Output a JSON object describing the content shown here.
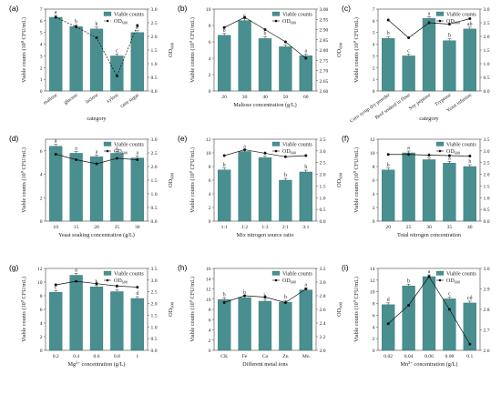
{
  "colors": {
    "bar": "#4a8f90",
    "bar_edge": "#2f6e6f",
    "line": "#111111",
    "axis": "#444444"
  },
  "legend": {
    "bar_label": "Viable counts",
    "line_label": "OD",
    "line_sub": "600"
  },
  "chart_data": [
    {
      "panel": "(a)",
      "type": "bar",
      "categories": [
        "maltose",
        "glucose",
        "lactose",
        "xylose",
        "cane sugar"
      ],
      "xlabel": "category",
      "ylabel_main": "Viable counts (10",
      "ylabel_sup": "8",
      "ylabel_tail": " CFU/mL)",
      "ylabel_right": "OD",
      "ylabel_right_sub": "600",
      "ylim": [
        0,
        7
      ],
      "yticks": [
        0,
        1,
        2,
        3,
        4,
        5,
        6,
        7
      ],
      "y2lim": [
        0,
        3.0
      ],
      "y2ticks": [
        0,
        0.5,
        1.0,
        1.5,
        2.0,
        2.5,
        3.0
      ],
      "values": [
        6.3,
        5.5,
        5.3,
        3.0,
        5.0
      ],
      "od": [
        2.7,
        2.35,
        1.95,
        0.55,
        2.4
      ],
      "line_dashed": true,
      "letters": [
        "a",
        "b",
        "b",
        "c",
        "b"
      ]
    },
    {
      "panel": "(b)",
      "type": "bar",
      "categories": [
        "20",
        "30",
        "40",
        "50",
        "60"
      ],
      "xlabel": "Maltose concentration (g/L)",
      "ylabel_main": "Viable counts (10",
      "ylabel_sup": "9",
      "ylabel_tail": " CFU/mL)",
      "ylabel_right": "OD",
      "ylabel_right_sub": "600",
      "ylim": [
        0,
        10
      ],
      "yticks": [
        0,
        2,
        4,
        6,
        8,
        10
      ],
      "y2lim": [
        2.6,
        3.0
      ],
      "y2ticks": [
        2.6,
        2.65,
        2.7,
        2.75,
        2.8,
        2.85,
        2.9,
        2.95,
        3.0
      ],
      "values": [
        6.8,
        8.6,
        6.4,
        5.4,
        4.3
      ],
      "od": [
        2.91,
        2.96,
        2.9,
        2.84,
        2.76
      ],
      "line_dashed": false,
      "letters": [
        "b",
        "c",
        "b",
        "a",
        "a"
      ]
    },
    {
      "panel": "(c)",
      "type": "bar",
      "categories": [
        "Corn syrup dry powder",
        "Beef soaked in flour",
        "Soy peptone",
        "Tryptone",
        "Yeast infusion"
      ],
      "xlabel": "category",
      "ylabel_main": "Viable counts (10",
      "ylabel_sup": "9",
      "ylabel_tail": " CFU/mL)",
      "ylabel_right": "OD",
      "ylabel_right_sub": "600",
      "ylim": [
        0,
        7
      ],
      "yticks": [
        0,
        1,
        2,
        3,
        4,
        5,
        6,
        7
      ],
      "y2lim": [
        0,
        3.0
      ],
      "y2ticks": [
        0,
        0.5,
        1.0,
        1.5,
        2.0,
        2.5,
        3.0
      ],
      "values": [
        4.5,
        3.0,
        6.2,
        4.3,
        5.3
      ],
      "od": [
        2.6,
        1.95,
        2.5,
        2.45,
        2.65
      ],
      "line_dashed": false,
      "letters": [
        "b",
        "c",
        "a",
        "b",
        "ab"
      ]
    },
    {
      "panel": "(d)",
      "type": "bar",
      "categories": [
        "10",
        "15",
        "20",
        "25",
        "30"
      ],
      "xlabel": "Yeast soaking concentration (g/L)",
      "ylabel_main": "Viable counts (10",
      "ylabel_sup": "9",
      "ylabel_tail": " CFU/mL)",
      "ylabel_right": "OD",
      "ylabel_right_sub": "600",
      "ylim": [
        0,
        7
      ],
      "yticks": [
        0,
        2,
        4,
        6
      ],
      "y2lim": [
        0,
        3.0
      ],
      "y2ticks": [
        0,
        0.5,
        1.0,
        1.5,
        2.0,
        2.5,
        3.0
      ],
      "values": [
        6.4,
        5.8,
        5.5,
        5.8,
        5.4
      ],
      "od": [
        2.45,
        2.25,
        2.1,
        2.3,
        2.25
      ],
      "line_dashed": false,
      "letters": [
        "a",
        "a",
        "a",
        "a",
        "a"
      ]
    },
    {
      "panel": "(e)",
      "type": "bar",
      "categories": [
        "1:1",
        "1:2",
        "1:3",
        "2:1",
        "3:1"
      ],
      "xlabel": "Mix nitrogen source ratio",
      "ylabel_main": "Viable counts (10",
      "ylabel_sup": "9",
      "ylabel_tail": " CFU/mL)",
      "ylabel_right": "OD",
      "ylabel_right_sub": "600",
      "ylim": [
        0,
        12
      ],
      "yticks": [
        0,
        2,
        4,
        6,
        8,
        10,
        12
      ],
      "y2lim": [
        0,
        3.5
      ],
      "y2ticks": [
        0,
        0.5,
        1.0,
        1.5,
        2.0,
        2.5,
        3.0,
        3.5
      ],
      "values": [
        7.5,
        10.2,
        9.3,
        6.0,
        7.2
      ],
      "od": [
        2.8,
        3.05,
        2.9,
        2.75,
        2.8
      ],
      "line_dashed": false,
      "letters": [
        "b",
        "a",
        "a",
        "b",
        "b"
      ]
    },
    {
      "panel": "(f)",
      "type": "bar",
      "categories": [
        "20",
        "25",
        "30",
        "35",
        "40"
      ],
      "xlabel": "Total nitrogen concentration",
      "ylabel_main": "Viable counts (10",
      "ylabel_sup": "9",
      "ylabel_tail": " CFU/mL)",
      "ylabel_right": "OD",
      "ylabel_right_sub": "600",
      "ylim": [
        0,
        12
      ],
      "yticks": [
        0,
        2,
        4,
        6,
        8,
        10,
        12
      ],
      "y2lim": [
        0,
        3.5
      ],
      "y2ticks": [
        0,
        0.5,
        1.0,
        1.5,
        2.0,
        2.5,
        3.0,
        3.5
      ],
      "values": [
        7.5,
        10.0,
        9.0,
        8.5,
        8.0
      ],
      "od": [
        2.85,
        2.85,
        2.82,
        2.8,
        2.78
      ],
      "line_dashed": false,
      "letters": [
        "b",
        "a",
        "a",
        "a",
        "b"
      ]
    },
    {
      "panel": "(g)",
      "type": "bar",
      "categories": [
        "0.2",
        "0.4",
        "0.6",
        "0.8",
        "1"
      ],
      "xlabel": "Mg",
      "xlabel_sup": "2+",
      "xlabel_tail": " concentration (g/L)",
      "ylabel_main": "Viable counts (10",
      "ylabel_sup": "9",
      "ylabel_tail": " CFU/mL)",
      "ylabel_right": "OD",
      "ylabel_right_sub": "600",
      "ylim": [
        0,
        12
      ],
      "yticks": [
        0,
        2,
        4,
        6,
        8,
        10,
        12
      ],
      "y2lim": [
        0,
        3.5
      ],
      "y2ticks": [
        0,
        0.5,
        1.0,
        1.5,
        2.0,
        2.5,
        3.0,
        3.5
      ],
      "values": [
        8.5,
        11.0,
        9.3,
        8.6,
        7.6
      ],
      "od": [
        2.8,
        2.95,
        2.85,
        2.75,
        2.7
      ],
      "line_dashed": false,
      "letters": [
        "c",
        "a",
        "b",
        "c",
        "d"
      ]
    },
    {
      "panel": "(h)",
      "type": "bar",
      "categories": [
        "CK",
        "Fe",
        "Cu",
        "Zn",
        "Mn"
      ],
      "xlabel": "Different metal ions",
      "ylabel_main": "Viable counts (10",
      "ylabel_sup": "9",
      "ylabel_tail": " CFU/mL)",
      "ylabel_right": "OD",
      "ylabel_right_sub": "600",
      "ylim": [
        0,
        16
      ],
      "yticks": [
        0,
        2,
        4,
        6,
        8,
        10,
        12,
        14,
        16
      ],
      "y2lim": [
        2.0,
        3.2
      ],
      "y2ticks": [
        2.0,
        2.2,
        2.4,
        2.6,
        2.8,
        3.0,
        3.2
      ],
      "values": [
        9.9,
        10.3,
        9.6,
        9.4,
        11.8
      ],
      "od": [
        2.7,
        2.8,
        2.78,
        2.7,
        2.9
      ],
      "line_dashed": false,
      "letters": [
        "b",
        "b",
        "b",
        "b",
        "a"
      ]
    },
    {
      "panel": "(i)",
      "type": "bar",
      "categories": [
        "0.02",
        "0.04",
        "0.06",
        "0.08",
        "0.1"
      ],
      "xlabel": "Mn",
      "xlabel_sup": "2+",
      "xlabel_tail": " concentration (g/L)",
      "ylabel_main": "Viable counts (10",
      "ylabel_sup": "9",
      "ylabel_tail": " CFU/mL)",
      "ylabel_right": "OD",
      "ylabel_right_sub": "600",
      "ylim": [
        0,
        14
      ],
      "yticks": [
        0,
        2,
        4,
        6,
        8,
        10,
        12,
        14
      ],
      "y2lim": [
        2.6,
        3.0
      ],
      "y2ticks": [
        2.6,
        2.7,
        2.8,
        2.9,
        3.0
      ],
      "values": [
        7.8,
        11.0,
        12.6,
        8.8,
        8.1
      ],
      "od": [
        2.73,
        2.82,
        2.96,
        2.8,
        2.63
      ],
      "line_dashed": false,
      "letters": [
        "d",
        "b",
        "a",
        "c",
        "cd"
      ]
    }
  ]
}
